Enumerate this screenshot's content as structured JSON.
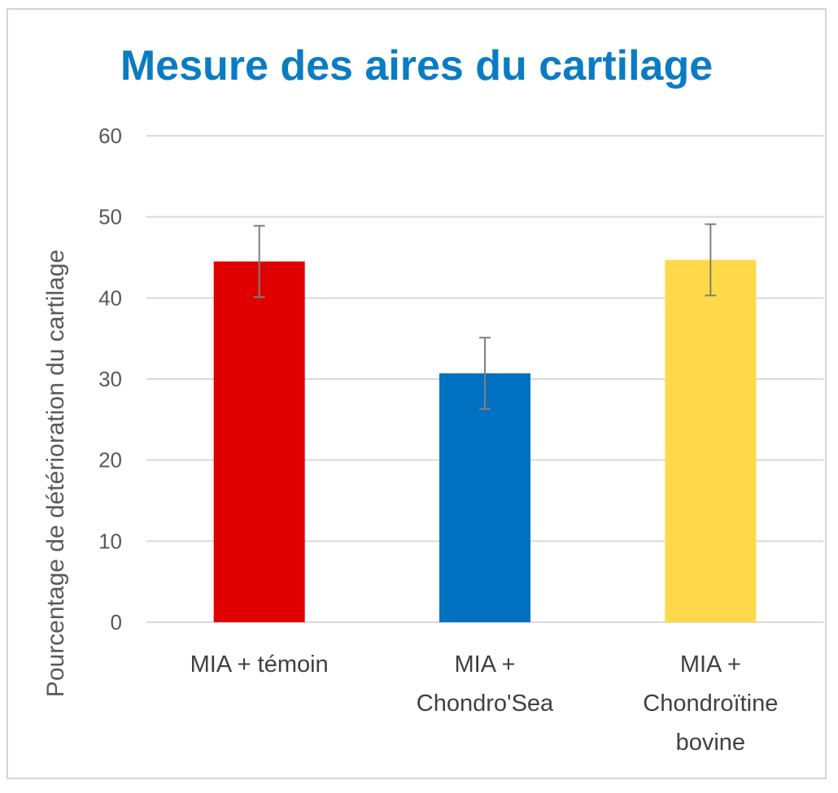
{
  "chart_data": {
    "type": "bar",
    "title": "Mesure des aires du cartilage",
    "xlabel": "",
    "ylabel": "Pourcentage de détérioration du cartilage",
    "ylim": [
      0,
      60
    ],
    "yticks": [
      0,
      10,
      20,
      30,
      40,
      50,
      60
    ],
    "grid": true,
    "legend": "none",
    "categories": [
      [
        "MIA + témoin"
      ],
      [
        "MIA +",
        "Chondro'Sea"
      ],
      [
        "MIA +",
        "Chondroïtine",
        "bovine"
      ]
    ],
    "values": [
      44.5,
      30.7,
      44.7
    ],
    "error": [
      4.4,
      4.4,
      4.4
    ],
    "colors": [
      "#e00000",
      "#0070c0",
      "#ffd94a"
    ]
  },
  "colors": {
    "title": "#0a7cc4",
    "grid": "#d9d9d9",
    "error_bar": "#7f7f7f"
  }
}
